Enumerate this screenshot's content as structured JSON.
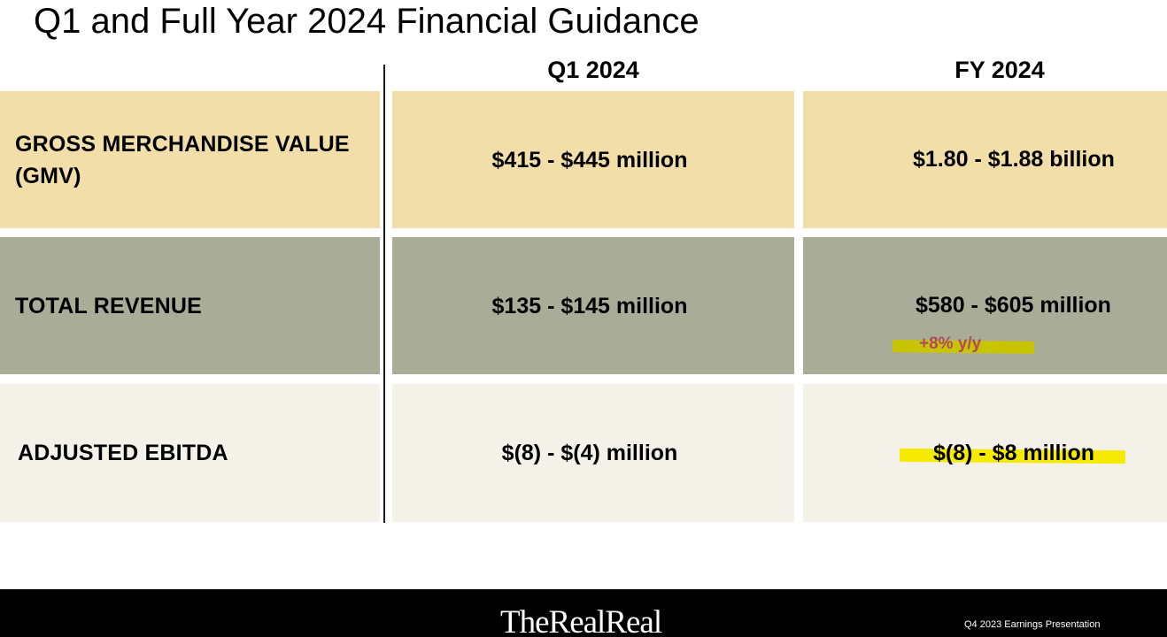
{
  "title": "Q1 and Full Year 2024 Financial Guidance",
  "columns": {
    "q1": "Q1 2024",
    "fy": "FY 2024"
  },
  "rows": [
    {
      "label": "GROSS MERCHANDISE VALUE (GMV)",
      "q1": "$415 - $445 million",
      "fy": "$1.80 - $1.88 billion",
      "color": "#f1dea9"
    },
    {
      "label": "TOTAL REVENUE",
      "q1": "$135 - $145 million",
      "fy": "$580 - $605 million",
      "fy_annotation": "+8% y/y",
      "color": "#a9ad98"
    },
    {
      "label": "ADJUSTED EBITDA",
      "q1": "$(8) - $(4) million",
      "fy": "$(8) - $8 million",
      "color": "#f4f1e9"
    }
  ],
  "highlights": {
    "revenue_marker_color": "#c9c400",
    "annotation_color": "#b04a63",
    "ebitda_marker_color": "#f5ea00"
  },
  "footer": {
    "logo": "TheRealReal",
    "note": "Q4 2023 Earnings Presentation"
  }
}
